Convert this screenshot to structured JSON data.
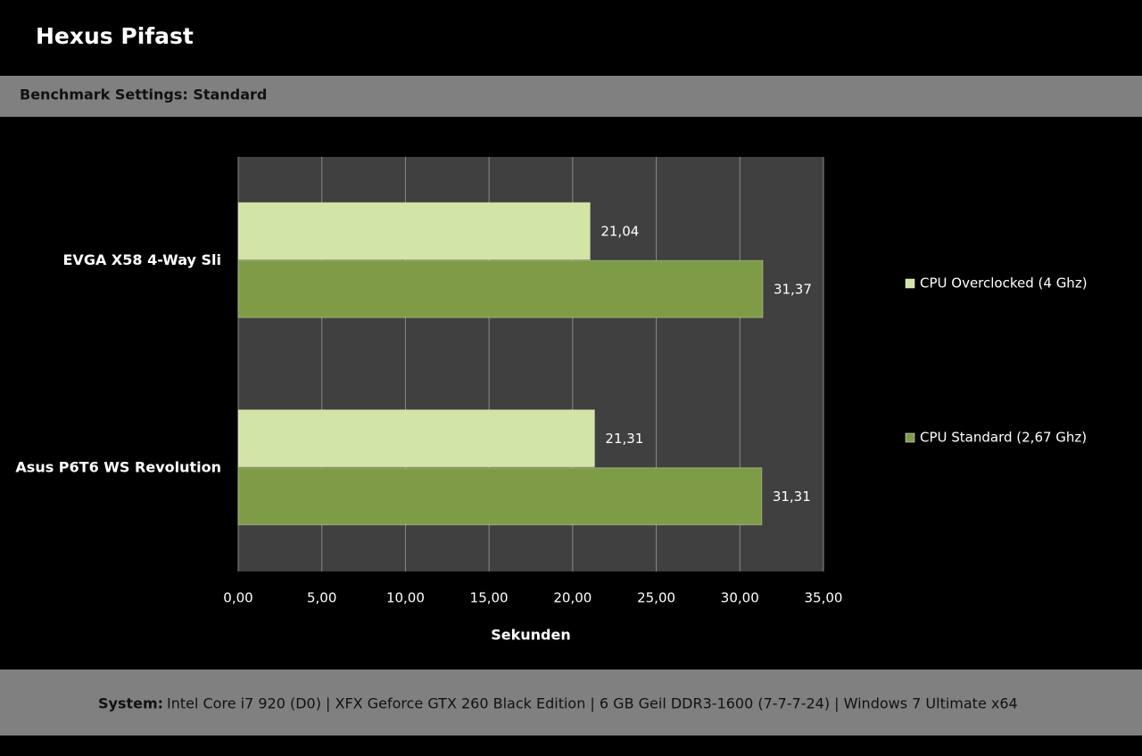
{
  "chart_data": {
    "type": "hbar",
    "title": "Hexus Pifast",
    "subtitle": "Benchmark Settings: Standard",
    "categories": [
      "EVGA X58 4-Way Sli",
      "Asus P6T6 WS Revolution"
    ],
    "series": [
      {
        "name": "CPU Overclocked (4 Ghz)",
        "color": "#d3e4a7",
        "values": [
          21.04,
          21.31
        ],
        "value_labels": [
          "21,04",
          "21,31"
        ]
      },
      {
        "name": "CPU Standard (2,67 Ghz)",
        "color": "#7e9c46",
        "values": [
          31.37,
          31.31
        ],
        "value_labels": [
          "31,37",
          "31,31"
        ]
      }
    ],
    "xlabel": "Sekunden",
    "xlim": [
      0,
      35
    ],
    "xticks": [
      {
        "value": 0,
        "label": "0,00"
      },
      {
        "value": 5,
        "label": "5,00"
      },
      {
        "value": 10,
        "label": "10,00"
      },
      {
        "value": 15,
        "label": "15,00"
      },
      {
        "value": 20,
        "label": "20,00"
      },
      {
        "value": 25,
        "label": "25,00"
      },
      {
        "value": 30,
        "label": "30,00"
      },
      {
        "value": 35,
        "label": "35,00"
      }
    ],
    "grid": true,
    "legend": "right"
  },
  "footer": {
    "label": "System:",
    "text": "Intel Core i7 920 (D0) | XFX Geforce GTX 260 Black Edition | 6 GB Geil DDR3-1600 (7-7-7-24) | Windows 7 Ultimate x64"
  }
}
